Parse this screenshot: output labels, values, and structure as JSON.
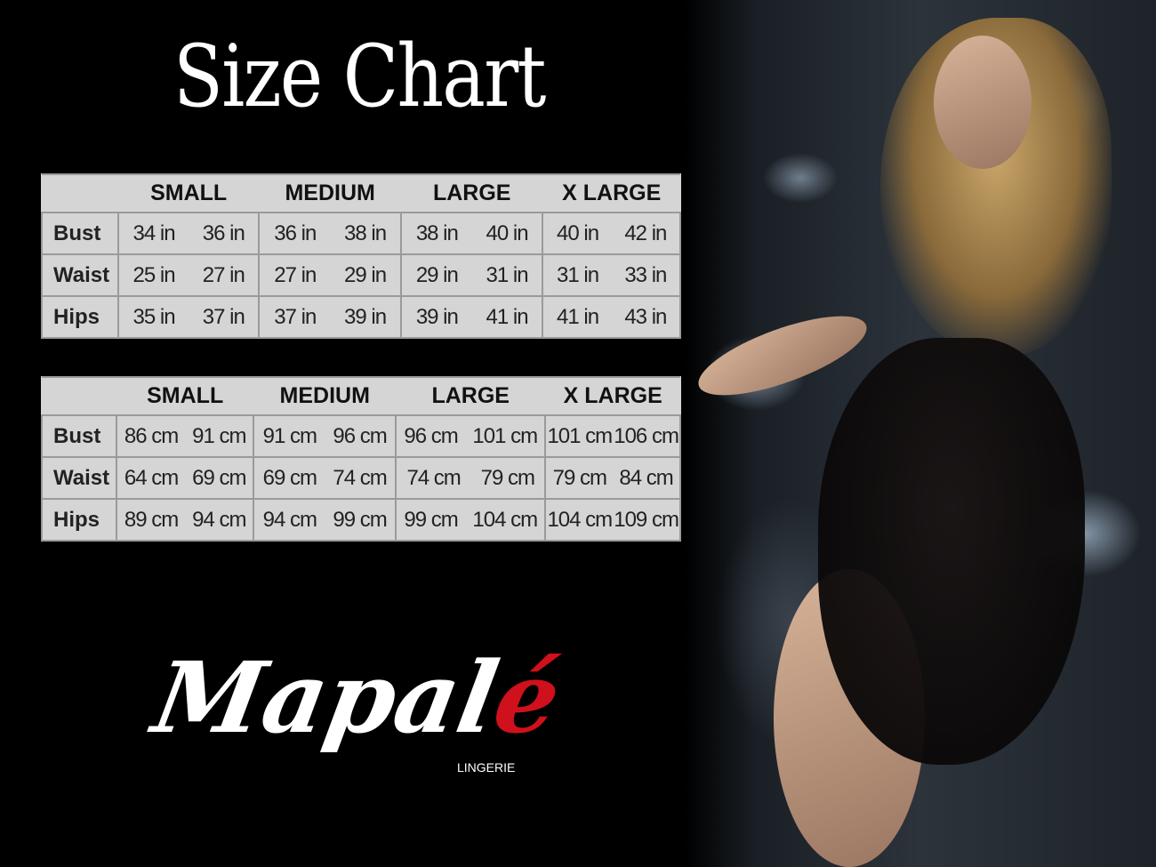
{
  "title": "Size Chart",
  "inches_table": {
    "sizes": [
      "SMALL",
      "MEDIUM",
      "LARGE",
      "X LARGE"
    ],
    "rows": [
      {
        "label": "Bust",
        "values": [
          [
            "34 in",
            "36 in"
          ],
          [
            "36 in",
            "38 in"
          ],
          [
            "38 in",
            "40 in"
          ],
          [
            "40 in",
            "42 in"
          ]
        ]
      },
      {
        "label": "Waist",
        "values": [
          [
            "25 in",
            "27 in"
          ],
          [
            "27 in",
            "29 in"
          ],
          [
            "29 in",
            "31 in"
          ],
          [
            "31 in",
            "33 in"
          ]
        ]
      },
      {
        "label": "Hips",
        "values": [
          [
            "35 in",
            "37 in"
          ],
          [
            "37 in",
            "39 in"
          ],
          [
            "39 in",
            "41 in"
          ],
          [
            "41 in",
            "43 in"
          ]
        ]
      }
    ]
  },
  "cm_table": {
    "sizes": [
      "SMALL",
      "MEDIUM",
      "LARGE",
      "X LARGE"
    ],
    "rows": [
      {
        "label": "Bust",
        "values": [
          [
            "86 cm",
            "91 cm"
          ],
          [
            "91 cm",
            "96 cm"
          ],
          [
            "96 cm",
            "101 cm"
          ],
          [
            "101 cm",
            "106 cm"
          ]
        ]
      },
      {
        "label": "Waist",
        "values": [
          [
            "64 cm",
            "69 cm"
          ],
          [
            "69 cm",
            "74 cm"
          ],
          [
            "74 cm",
            "79 cm"
          ],
          [
            "79 cm",
            "84 cm"
          ]
        ]
      },
      {
        "label": "Hips",
        "values": [
          [
            "89 cm",
            "94 cm"
          ],
          [
            "94 cm",
            "99 cm"
          ],
          [
            "99 cm",
            "104 cm"
          ],
          [
            "104 cm",
            "109 cm"
          ]
        ]
      }
    ]
  },
  "logo": {
    "text_main": "Mapal",
    "text_accent": "é",
    "subtitle": "LINGERIE",
    "accent_color": "#d0101c"
  }
}
